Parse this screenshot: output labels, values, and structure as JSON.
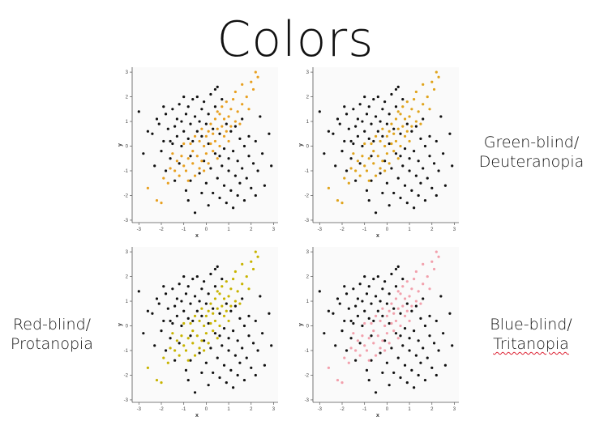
{
  "slide": {
    "title": "Colors"
  },
  "labels": {
    "green_line1": "Green-blind/",
    "green_line2": "Deuteranopia",
    "red_line1": "Red-blind/",
    "red_line2": "Protanopia",
    "blue_line1": "Blue-blind/",
    "blue_line2": "Tritanopia"
  },
  "chart_data": [
    {
      "type": "scatter",
      "title": "",
      "xlabel": "x",
      "ylabel": "y",
      "xlim": [
        -3.3,
        3.2
      ],
      "ylim": [
        -3.1,
        3.2
      ],
      "xticks": [
        "-3",
        "-2",
        "-1",
        "0",
        "1",
        "2",
        "3"
      ],
      "yticks": [
        "-3",
        "-2",
        "-1",
        "0",
        "1",
        "2",
        "3"
      ],
      "grid": false,
      "series": [
        {
          "color": "#111111"
        },
        {
          "color": "#e8a020"
        }
      ]
    },
    {
      "type": "scatter",
      "title": "",
      "xlabel": "x",
      "ylabel": "y",
      "xlim": [
        -3.3,
        3.2
      ],
      "ylim": [
        -3.1,
        3.2
      ],
      "xticks": [
        "-3",
        "-2",
        "-1",
        "0",
        "1",
        "2",
        "3"
      ],
      "yticks": [
        "-3",
        "-2",
        "-1",
        "0",
        "1",
        "2",
        "3"
      ],
      "grid": false,
      "series": [
        {
          "color": "#111111"
        },
        {
          "color": "#e0a41c"
        }
      ]
    },
    {
      "type": "scatter",
      "title": "",
      "xlabel": "x",
      "ylabel": "y",
      "xlim": [
        -3.3,
        3.2
      ],
      "ylim": [
        -3.1,
        3.2
      ],
      "xticks": [
        "-3",
        "-2",
        "-1",
        "0",
        "1",
        "2",
        "3"
      ],
      "yticks": [
        "-3",
        "-2",
        "-1",
        "0",
        "1",
        "2",
        "3"
      ],
      "grid": false,
      "series": [
        {
          "color": "#111111"
        },
        {
          "color": "#c8b400"
        }
      ]
    },
    {
      "type": "scatter",
      "title": "",
      "xlabel": "x",
      "ylabel": "y",
      "xlim": [
        -3.3,
        3.2
      ],
      "ylim": [
        -3.1,
        3.2
      ],
      "xticks": [
        "-3",
        "-2",
        "-1",
        "0",
        "1",
        "2",
        "3"
      ],
      "yticks": [
        "-3",
        "-2",
        "-1",
        "0",
        "1",
        "2",
        "3"
      ],
      "grid": false,
      "series": [
        {
          "color": "#111111"
        },
        {
          "color": "#f2a0ac"
        }
      ]
    }
  ],
  "scatter_points": {
    "black": [
      [
        -3.0,
        1.4
      ],
      [
        -2.6,
        0.6
      ],
      [
        -2.4,
        0.5
      ],
      [
        -2.3,
        -0.8
      ],
      [
        -2.2,
        1.1
      ],
      [
        -2.1,
        0.9
      ],
      [
        -2.0,
        -0.2
      ],
      [
        -1.9,
        0.2
      ],
      [
        -1.8,
        1.3
      ],
      [
        -1.8,
        -1.0
      ],
      [
        -1.7,
        0.7
      ],
      [
        -1.6,
        -0.5
      ],
      [
        -1.5,
        1.5
      ],
      [
        -1.5,
        0.1
      ],
      [
        -1.4,
        0.8
      ],
      [
        -1.4,
        -1.4
      ],
      [
        -1.3,
        1.1
      ],
      [
        -1.3,
        0.4
      ],
      [
        -1.2,
        1.7
      ],
      [
        -1.2,
        -0.7
      ],
      [
        -1.1,
        0.0
      ],
      [
        -1.1,
        1.0
      ],
      [
        -1.0,
        2.0
      ],
      [
        -1.0,
        0.6
      ],
      [
        -0.9,
        1.3
      ],
      [
        -0.9,
        -1.8
      ],
      [
        -0.8,
        0.3
      ],
      [
        -0.8,
        1.6
      ],
      [
        -0.8,
        -2.2
      ],
      [
        -0.7,
        0.9
      ],
      [
        -0.7,
        -0.4
      ],
      [
        -0.6,
        1.9
      ],
      [
        -0.6,
        0.2
      ],
      [
        -0.5,
        1.2
      ],
      [
        -0.5,
        -2.7
      ],
      [
        -0.4,
        0.6
      ],
      [
        -0.4,
        2.0
      ],
      [
        -0.3,
        1.0
      ],
      [
        -0.3,
        -1.1
      ],
      [
        -0.2,
        1.5
      ],
      [
        -0.2,
        0.4
      ],
      [
        -0.1,
        1.8
      ],
      [
        -0.1,
        -0.6
      ],
      [
        0.0,
        0.9
      ],
      [
        0.0,
        -1.5
      ],
      [
        0.1,
        1.3
      ],
      [
        0.1,
        0.1
      ],
      [
        0.2,
        2.1
      ],
      [
        0.2,
        -0.9
      ],
      [
        0.3,
        0.7
      ],
      [
        0.3,
        -1.9
      ],
      [
        0.4,
        1.6
      ],
      [
        0.4,
        -0.3
      ],
      [
        0.5,
        -1.3
      ],
      [
        0.5,
        2.4
      ],
      [
        0.6,
        0.5
      ],
      [
        0.6,
        -2.1
      ],
      [
        0.7,
        -0.8
      ],
      [
        0.7,
        1.9
      ],
      [
        0.8,
        -0.1
      ],
      [
        0.8,
        -1.6
      ],
      [
        0.9,
        0.9
      ],
      [
        0.9,
        -2.3
      ],
      [
        1.0,
        -0.5
      ],
      [
        1.0,
        -1.0
      ],
      [
        1.1,
        0.6
      ],
      [
        1.1,
        -1.8
      ],
      [
        1.2,
        -0.2
      ],
      [
        1.3,
        -1.2
      ],
      [
        1.3,
        0.8
      ],
      [
        1.4,
        -2.0
      ],
      [
        1.4,
        -0.6
      ],
      [
        1.5,
        0.3
      ],
      [
        1.5,
        -1.5
      ],
      [
        1.6,
        -0.9
      ],
      [
        1.7,
        0.0
      ],
      [
        1.7,
        -2.2
      ],
      [
        1.8,
        -1.3
      ],
      [
        1.9,
        0.4
      ],
      [
        1.9,
        -0.4
      ],
      [
        2.0,
        -1.7
      ],
      [
        2.1,
        -0.7
      ],
      [
        2.2,
        0.2
      ],
      [
        2.3,
        -1.0
      ],
      [
        2.4,
        1.2
      ],
      [
        2.5,
        -0.3
      ],
      [
        2.6,
        -1.6
      ],
      [
        2.8,
        0.5
      ],
      [
        2.9,
        -0.8
      ],
      [
        -2.8,
        -0.3
      ],
      [
        -1.6,
        0.2
      ],
      [
        -0.7,
        -1.4
      ],
      [
        0.1,
        -2.4
      ],
      [
        0.6,
        -0.4
      ],
      [
        1.6,
        1.1
      ],
      [
        2.2,
        -2.0
      ],
      [
        -1.9,
        1.6
      ],
      [
        -0.2,
        -1.9
      ],
      [
        0.4,
        2.3
      ],
      [
        1.2,
        -2.5
      ]
    ],
    "accent": [
      [
        -2.6,
        -1.7
      ],
      [
        -2.2,
        -2.2
      ],
      [
        -2.0,
        -2.3
      ],
      [
        -1.9,
        -1.3
      ],
      [
        -1.7,
        -1.5
      ],
      [
        -1.6,
        -0.9
      ],
      [
        -1.5,
        -0.3
      ],
      [
        -1.4,
        -1.0
      ],
      [
        -1.3,
        -0.6
      ],
      [
        -1.2,
        -1.2
      ],
      [
        -1.1,
        -0.4
      ],
      [
        -1.0,
        -0.8
      ],
      [
        -1.0,
        0.1
      ],
      [
        -0.9,
        -1.0
      ],
      [
        -0.8,
        -0.5
      ],
      [
        -0.7,
        0.1
      ],
      [
        -0.6,
        -0.7
      ],
      [
        -0.6,
        -0.2
      ],
      [
        -0.5,
        -1.2
      ],
      [
        -0.5,
        0.4
      ],
      [
        -0.4,
        -0.4
      ],
      [
        -0.3,
        -0.9
      ],
      [
        -0.3,
        0.2
      ],
      [
        -0.2,
        -0.6
      ],
      [
        -0.1,
        0.0
      ],
      [
        -0.1,
        -1.0
      ],
      [
        0.0,
        0.4
      ],
      [
        0.0,
        -0.3
      ],
      [
        0.1,
        0.6
      ],
      [
        0.1,
        -0.7
      ],
      [
        0.2,
        0.1
      ],
      [
        0.2,
        0.9
      ],
      [
        0.3,
        -0.2
      ],
      [
        0.3,
        0.5
      ],
      [
        0.4,
        1.1
      ],
      [
        0.4,
        0.2
      ],
      [
        0.5,
        0.7
      ],
      [
        0.5,
        -0.5
      ],
      [
        0.6,
        1.3
      ],
      [
        0.6,
        0.0
      ],
      [
        0.7,
        0.8
      ],
      [
        0.7,
        1.6
      ],
      [
        0.8,
        0.4
      ],
      [
        0.8,
        1.1
      ],
      [
        0.9,
        1.8
      ],
      [
        0.9,
        0.6
      ],
      [
        1.0,
        1.2
      ],
      [
        1.0,
        0.2
      ],
      [
        1.1,
        1.5
      ],
      [
        1.1,
        0.8
      ],
      [
        1.2,
        1.9
      ],
      [
        1.3,
        1.0
      ],
      [
        1.3,
        2.2
      ],
      [
        1.4,
        1.4
      ],
      [
        1.5,
        0.9
      ],
      [
        1.6,
        2.5
      ],
      [
        1.6,
        1.7
      ],
      [
        1.8,
        2.0
      ],
      [
        1.9,
        1.5
      ],
      [
        2.0,
        2.6
      ],
      [
        2.2,
        3.0
      ],
      [
        2.3,
        2.8
      ],
      [
        2.1,
        2.3
      ],
      [
        -0.2,
        0.7
      ],
      [
        0.5,
        1.4
      ],
      [
        -0.8,
        -1.4
      ]
    ]
  }
}
